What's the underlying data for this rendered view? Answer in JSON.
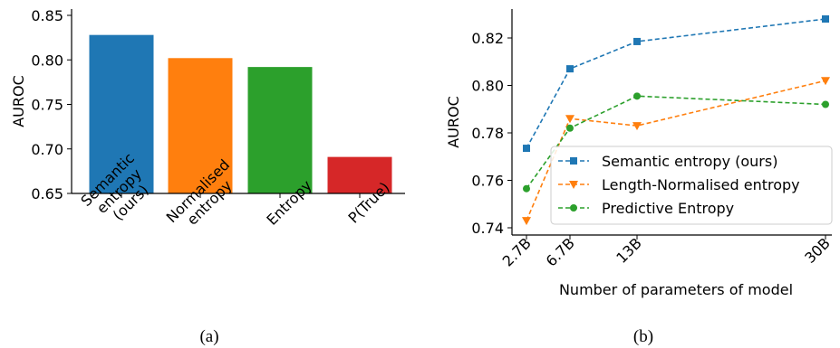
{
  "chart_data": [
    {
      "type": "bar",
      "caption": "(a)",
      "ylabel": "AUROC",
      "ylim": [
        0.65,
        0.85
      ],
      "yticks": [
        "0.65",
        "0.70",
        "0.75",
        "0.80",
        "0.85"
      ],
      "grid": false,
      "bars": [
        {
          "label_lines": [
            "Semantic",
            "entropy",
            "(ours)"
          ],
          "value": 0.828,
          "color": "#1f77b4"
        },
        {
          "label_lines": [
            "Normalised",
            "entropy"
          ],
          "value": 0.802,
          "color": "#ff7f0e"
        },
        {
          "label_lines": [
            "Entropy"
          ],
          "value": 0.792,
          "color": "#2ca02c"
        },
        {
          "label_lines": [
            "P(True)"
          ],
          "value": 0.691,
          "color": "#d62728"
        }
      ]
    },
    {
      "type": "line",
      "caption": "(b)",
      "xlabel": "Number of parameters of model",
      "ylabel": "AUROC",
      "x": [
        2.7,
        6.7,
        13,
        30
      ],
      "xtick_labels": [
        "2.7B",
        "6.7B",
        "13B",
        "30B"
      ],
      "xlim": [
        2.7,
        30
      ],
      "ylim": [
        0.74,
        0.83
      ],
      "yticks": [
        "0.74",
        "0.76",
        "0.78",
        "0.80",
        "0.82"
      ],
      "grid": false,
      "legend_position": "lower-right",
      "series": [
        {
          "name": "Semantic entropy (ours)",
          "color": "#1f77b4",
          "marker": "square",
          "values": [
            0.7735,
            0.807,
            0.8185,
            0.828
          ]
        },
        {
          "name": "Length-Normalised entropy",
          "color": "#ff7f0e",
          "marker": "triangle-down",
          "values": [
            0.743,
            0.786,
            0.783,
            0.802
          ]
        },
        {
          "name": "Predictive Entropy",
          "color": "#2ca02c",
          "marker": "circle",
          "values": [
            0.7565,
            0.782,
            0.7955,
            0.792
          ]
        }
      ]
    }
  ]
}
